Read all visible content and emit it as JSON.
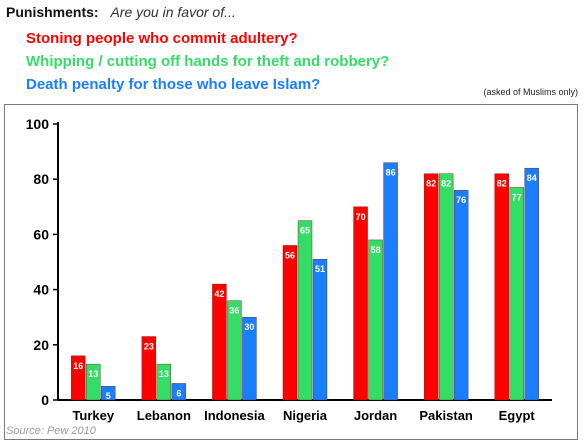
{
  "header": {
    "label": "Punishments:",
    "question": "Are you in favor of..."
  },
  "note": "(asked of Muslims only)",
  "source": "Source: Pew 2010",
  "chart_data": {
    "type": "bar",
    "categories": [
      "Turkey",
      "Lebanon",
      "Indonesia",
      "Nigeria",
      "Jordan",
      "Pakistan",
      "Egypt"
    ],
    "series": [
      {
        "name": "Stoning people who commit adultery?",
        "color": "#ff0000",
        "values": [
          16,
          23,
          42,
          56,
          70,
          82,
          82
        ]
      },
      {
        "name": "Whipping / cutting off hands for theft and robbery?",
        "color": "#33dd66",
        "values": [
          13,
          13,
          36,
          65,
          58,
          82,
          77
        ]
      },
      {
        "name": "Death penalty for those who leave Islam?",
        "color": "#1a7fff",
        "values": [
          5,
          6,
          30,
          51,
          86,
          76,
          84
        ]
      }
    ],
    "yticks": [
      0,
      20,
      40,
      60,
      80,
      100
    ],
    "ylim": [
      0,
      100
    ],
    "grid": false,
    "legend_position": "top-left"
  }
}
